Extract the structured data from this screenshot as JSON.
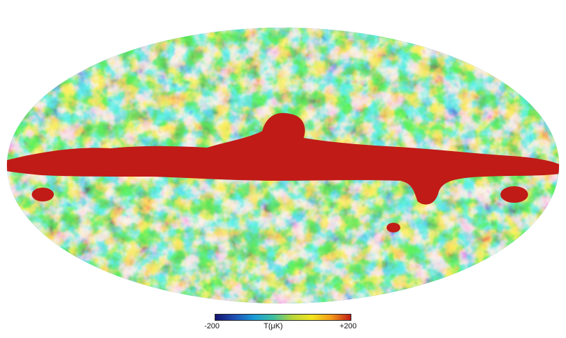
{
  "map": {
    "projection": "mollweide-ellipse",
    "colormap": [
      "#14146e",
      "#1f4fb4",
      "#1b9bd6",
      "#3fbfa0",
      "#b8d63a",
      "#f2e51e",
      "#f39a1a",
      "#c11b17"
    ]
  },
  "colorbar": {
    "min_label": "-200",
    "mid_label": "T(μK)",
    "max_label": "+200",
    "min_value": -200,
    "max_value": 200
  }
}
